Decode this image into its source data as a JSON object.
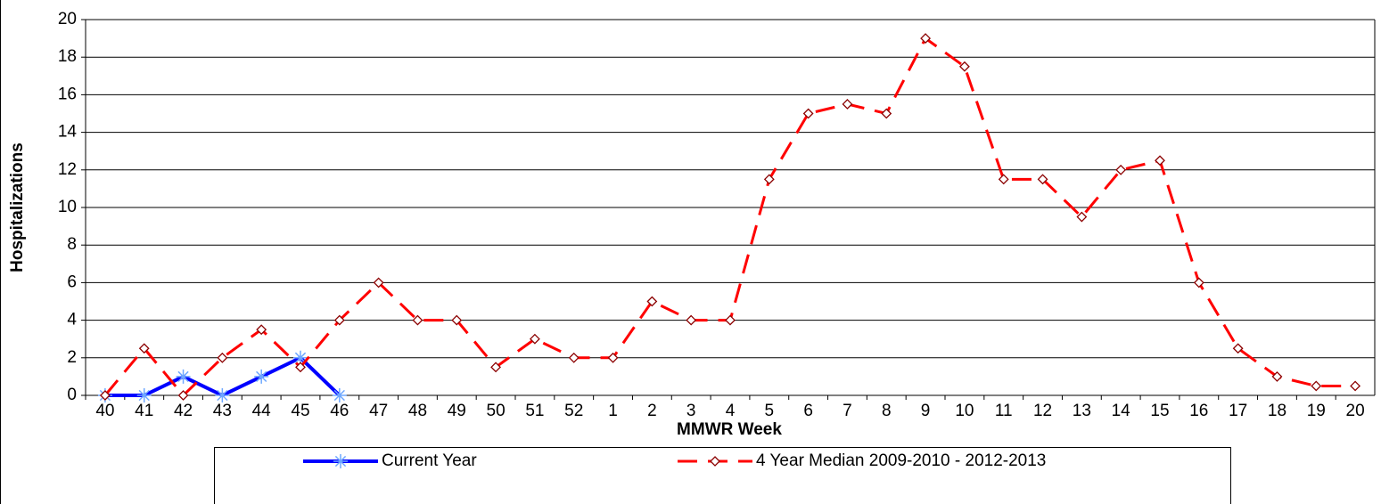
{
  "chart_data": {
    "type": "line",
    "y_label": "Hospitalizations",
    "x_label": "MMWR Week",
    "categories": [
      "40",
      "41",
      "42",
      "43",
      "44",
      "45",
      "46",
      "47",
      "48",
      "49",
      "50",
      "51",
      "52",
      "1",
      "2",
      "3",
      "4",
      "5",
      "6",
      "7",
      "8",
      "9",
      "10",
      "11",
      "12",
      "13",
      "14",
      "15",
      "16",
      "17",
      "18",
      "19",
      "20"
    ],
    "series": [
      {
        "name": "Current Year",
        "color": "#0000ff",
        "marker": "asterisk",
        "dashed": false,
        "values": [
          0,
          0,
          1,
          0,
          1,
          2,
          0,
          null,
          null,
          null,
          null,
          null,
          null,
          null,
          null,
          null,
          null,
          null,
          null,
          null,
          null,
          null,
          null,
          null,
          null,
          null,
          null,
          null,
          null,
          null,
          null,
          null,
          null
        ]
      },
      {
        "name": "4 Year Median 2009-2010 - 2012-2013",
        "color": "#ff0000",
        "marker": "diamond",
        "dashed": true,
        "values": [
          0,
          2.5,
          0,
          2,
          3.5,
          1.5,
          4,
          6,
          4,
          4,
          1.5,
          3,
          2,
          2,
          5,
          4,
          4,
          11.5,
          15,
          15.5,
          15,
          19,
          17.5,
          11.5,
          11.5,
          9.5,
          12,
          12.5,
          6,
          2.5,
          1,
          0.5,
          0.5
        ]
      }
    ],
    "ylim": [
      0,
      20
    ],
    "yticks": [
      0,
      2,
      4,
      6,
      8,
      10,
      12,
      14,
      16,
      18,
      20
    ],
    "grid": true
  }
}
